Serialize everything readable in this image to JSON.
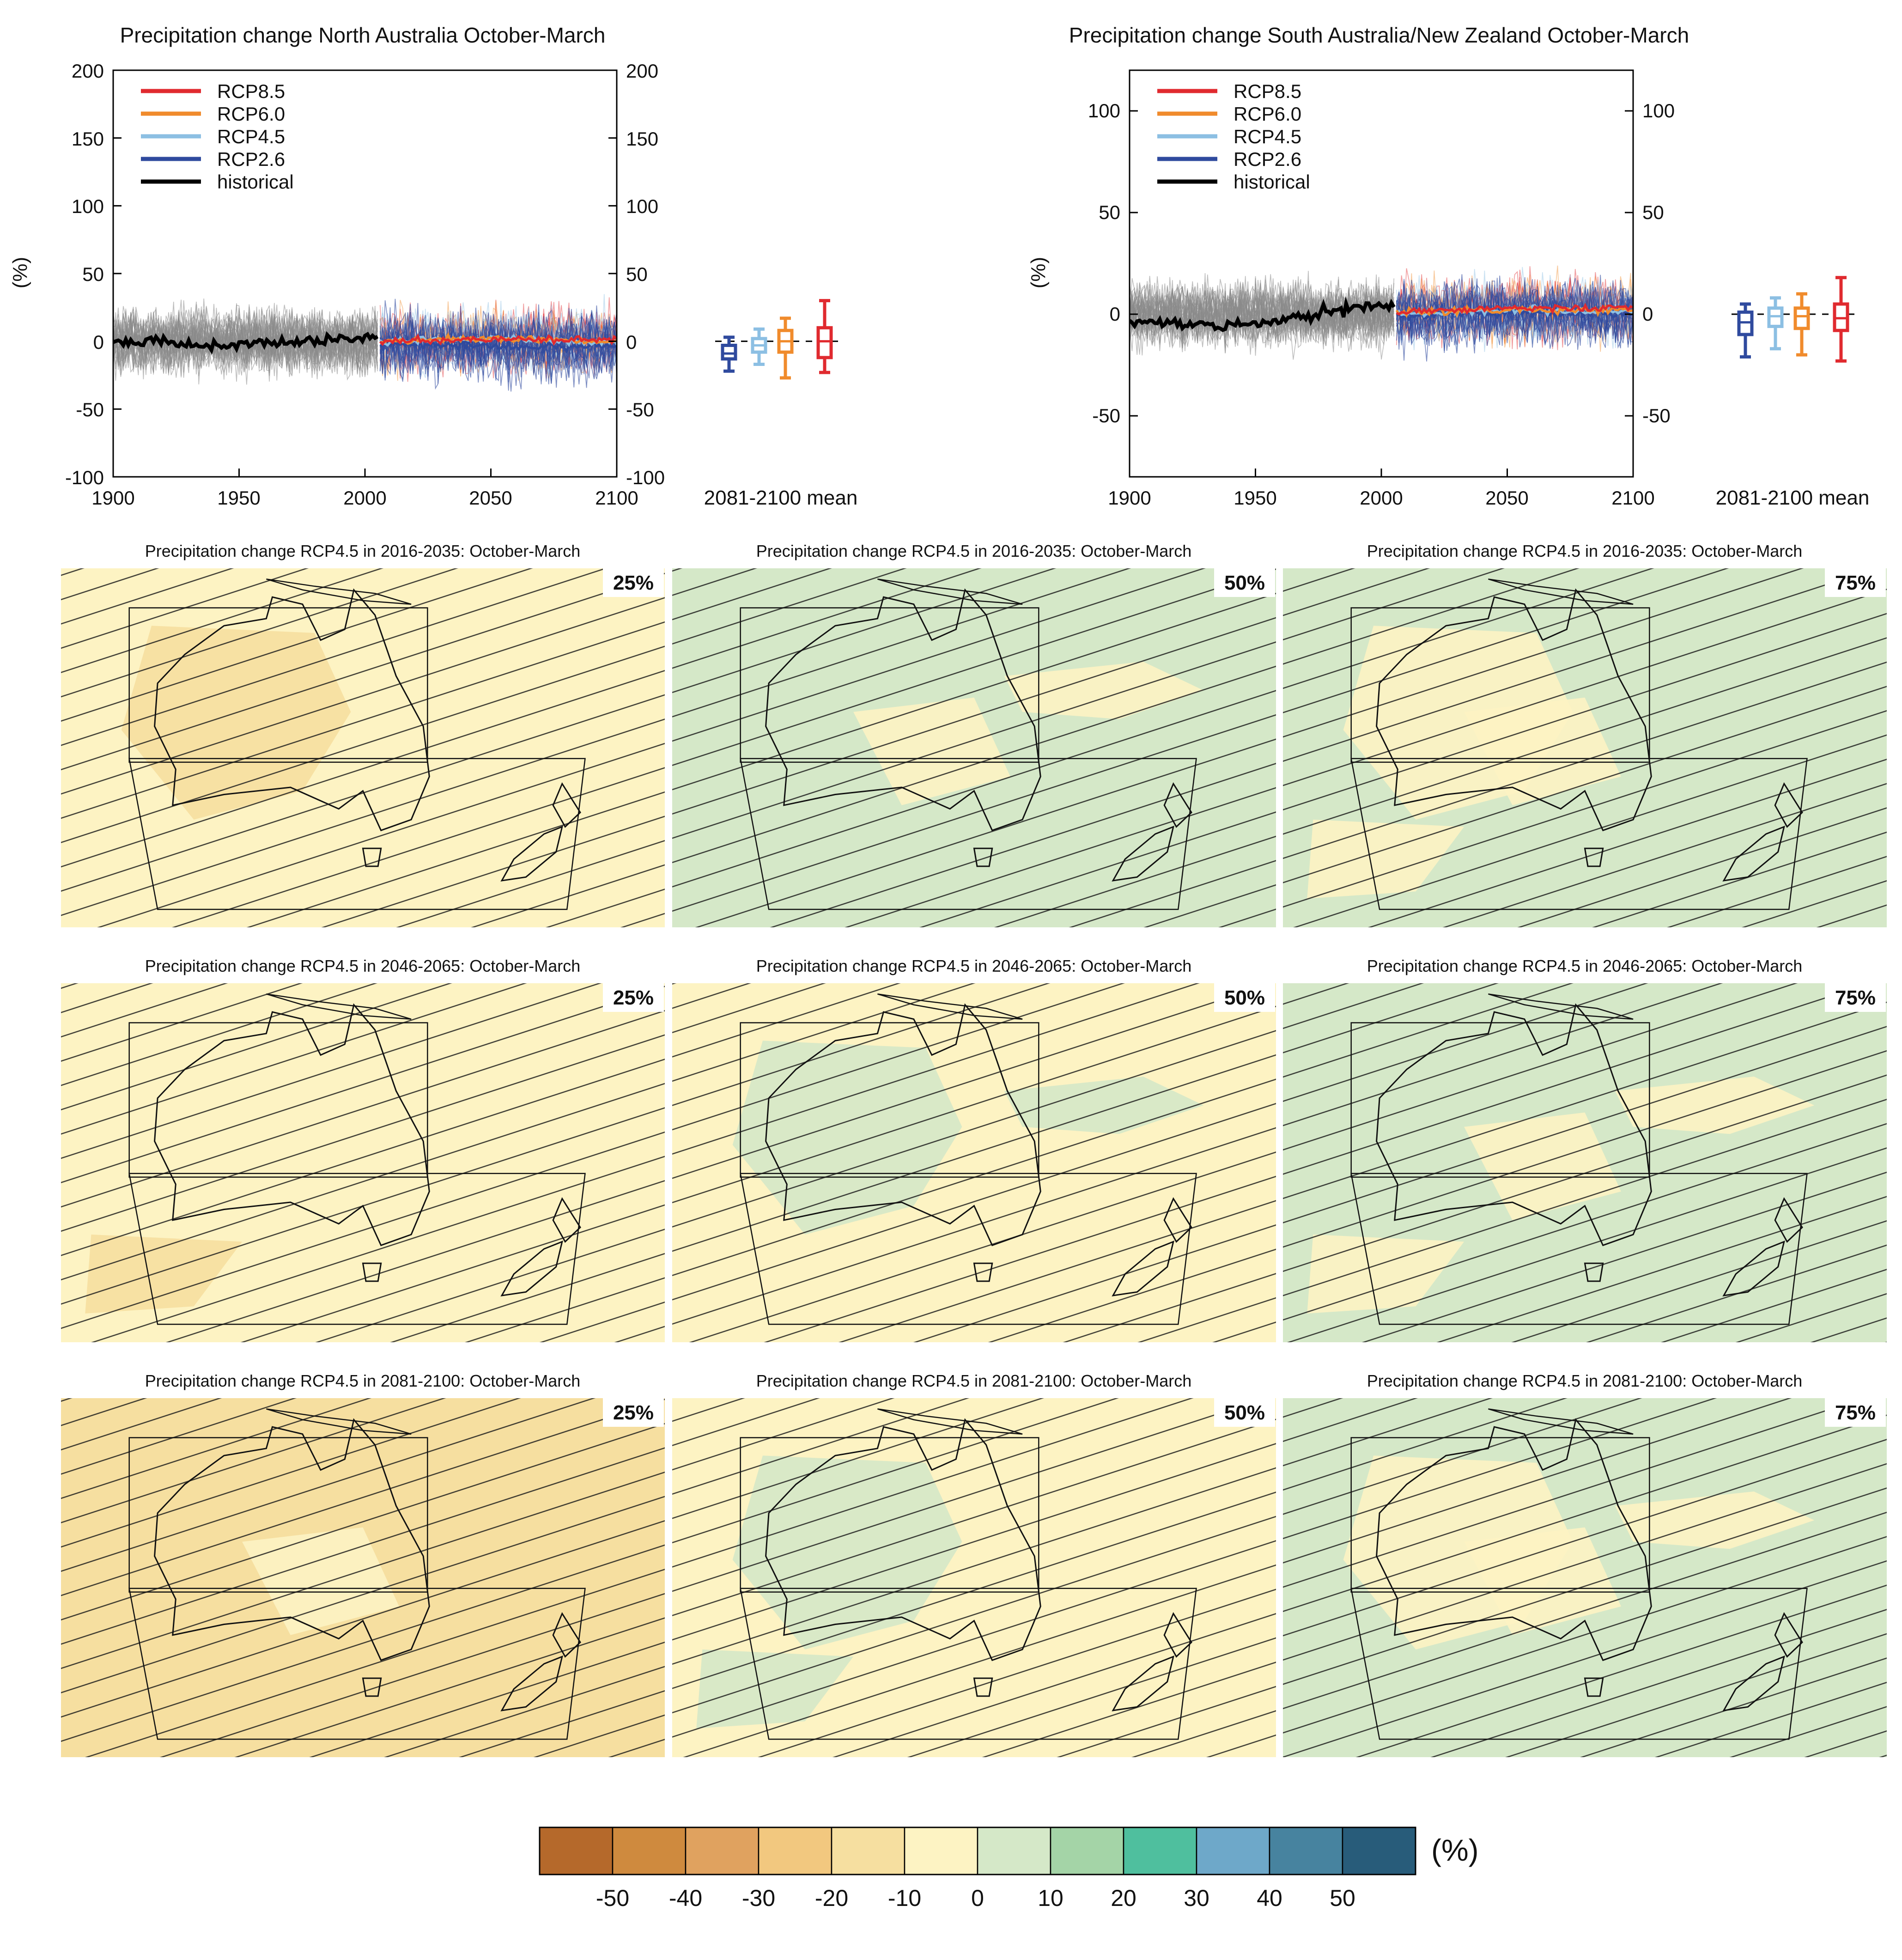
{
  "chart_data": [
    {
      "type": "line",
      "title": "Precipitation change North Australia October-March",
      "ylabel": "(%)",
      "xlim": [
        1900,
        2100
      ],
      "ylim": [
        -100,
        200
      ],
      "x_ticks": [
        "1900",
        "1950",
        "2000",
        "2050",
        "2100"
      ],
      "y_ticks": [
        "200",
        "150",
        "100",
        "50",
        "0",
        "-50",
        "-100"
      ],
      "legend": [
        "RCP8.5",
        "RCP6.0",
        "RCP4.5",
        "RCP2.6",
        "historical"
      ],
      "series": [
        {
          "name": "historical",
          "x": [
            1900,
            1920,
            1940,
            1960,
            1980,
            2005
          ],
          "values": [
            0,
            -1,
            -3,
            -1,
            1,
            2
          ]
        },
        {
          "name": "RCP2.6",
          "x": [
            2006,
            2050,
            2100
          ],
          "values": [
            -2,
            -4,
            -3
          ]
        },
        {
          "name": "RCP4.5",
          "x": [
            2006,
            2050,
            2100
          ],
          "values": [
            0,
            2,
            -1
          ]
        },
        {
          "name": "RCP6.0",
          "x": [
            2006,
            2050,
            2100
          ],
          "values": [
            0,
            2,
            0
          ]
        },
        {
          "name": "RCP8.5",
          "x": [
            2006,
            2050,
            2100
          ],
          "values": [
            0,
            1,
            2
          ]
        }
      ],
      "box_label": "2081-2100 mean",
      "boxes": [
        {
          "name": "RCP2.6",
          "min": -22,
          "q1": -13,
          "median": -9,
          "q3": -3,
          "max": 3
        },
        {
          "name": "RCP4.5",
          "min": -17,
          "q1": -8,
          "median": -3,
          "q3": 2,
          "max": 9
        },
        {
          "name": "RCP6.0",
          "min": -27,
          "q1": -8,
          "median": 0,
          "q3": 8,
          "max": 17
        },
        {
          "name": "RCP8.5",
          "min": -23,
          "q1": -12,
          "median": 0,
          "q3": 10,
          "max": 30
        }
      ]
    },
    {
      "type": "line",
      "title": "Precipitation change South Australia/New Zealand October-March",
      "ylabel": "(%)",
      "xlim": [
        1900,
        2100
      ],
      "ylim": [
        -80,
        120
      ],
      "x_ticks": [
        "1900",
        "1950",
        "2000",
        "2050",
        "2100"
      ],
      "y_ticks": [
        "100",
        "50",
        "0",
        "-50"
      ],
      "legend": [
        "RCP8.5",
        "RCP6.0",
        "RCP4.5",
        "RCP2.6",
        "historical"
      ],
      "series": [
        {
          "name": "historical",
          "x": [
            1900,
            1920,
            1940,
            1960,
            1980,
            2005
          ],
          "values": [
            -3,
            -5,
            -6,
            -3,
            2,
            4
          ]
        },
        {
          "name": "RCP2.6",
          "x": [
            2006,
            2050,
            2100
          ],
          "values": [
            -1,
            1,
            0
          ]
        },
        {
          "name": "RCP4.5",
          "x": [
            2006,
            2050,
            2100
          ],
          "values": [
            0,
            2,
            1
          ]
        },
        {
          "name": "RCP6.0",
          "x": [
            2006,
            2050,
            2100
          ],
          "values": [
            1,
            2,
            2
          ]
        },
        {
          "name": "RCP8.5",
          "x": [
            2006,
            2050,
            2100
          ],
          "values": [
            1,
            3,
            3
          ]
        }
      ],
      "box_label": "2081-2100 mean",
      "boxes": [
        {
          "name": "RCP2.6",
          "min": -21,
          "q1": -10,
          "median": -4,
          "q3": 1,
          "max": 5
        },
        {
          "name": "RCP4.5",
          "min": -17,
          "q1": -6,
          "median": -1,
          "q3": 3,
          "max": 8
        },
        {
          "name": "RCP6.0",
          "min": -20,
          "q1": -7,
          "median": -1,
          "q3": 3,
          "max": 10
        },
        {
          "name": "RCP8.5",
          "min": -23,
          "q1": -8,
          "median": -2,
          "q3": 5,
          "max": 18
        }
      ]
    },
    {
      "type": "heatmap",
      "colorbar": {
        "unit": "(%)",
        "ticks": [
          "-50",
          "-40",
          "-30",
          "-20",
          "-10",
          "0",
          "10",
          "20",
          "30",
          "40",
          "50"
        ],
        "colors": [
          "#b5692b",
          "#cf8a3e",
          "#e0a25f",
          "#f2c87f",
          "#f6dfa0",
          "#fdf3c3",
          "#d5e8c8",
          "#a4d4a7",
          "#4fbf9e",
          "#6ea8c9",
          "#47839f",
          "#285c7a"
        ]
      },
      "maps": [
        {
          "title": "Precipitation change RCP4.5 in 2016-2035: October-March",
          "percentile": "25%",
          "dominant": "-10 to 0",
          "blobs": [
            "-20 to -10"
          ]
        },
        {
          "title": "Precipitation change RCP4.5 in 2016-2035: October-March",
          "percentile": "50%",
          "dominant": "0 to 10",
          "blobs": [
            "-10 to 0"
          ]
        },
        {
          "title": "Precipitation change RCP4.5 in 2016-2035: October-March",
          "percentile": "75%",
          "dominant": "0 to 10",
          "blobs": [
            "-10 to 0"
          ]
        },
        {
          "title": "Precipitation change RCP4.5 in 2046-2065: October-March",
          "percentile": "25%",
          "dominant": "-10 to 0",
          "blobs": [
            "-20 to -10"
          ]
        },
        {
          "title": "Precipitation change RCP4.5 in 2046-2065: October-March",
          "percentile": "50%",
          "dominant": "-10 to 0",
          "blobs": [
            "0 to 10"
          ]
        },
        {
          "title": "Precipitation change RCP4.5 in 2046-2065: October-March",
          "percentile": "75%",
          "dominant": "0 to 10",
          "blobs": [
            "-10 to 0"
          ]
        },
        {
          "title": "Precipitation change RCP4.5 in 2081-2100: October-March",
          "percentile": "25%",
          "dominant": "-20 to -10",
          "blobs": [
            "-10 to 0"
          ]
        },
        {
          "title": "Precipitation change RCP4.5 in 2081-2100: October-March",
          "percentile": "50%",
          "dominant": "-10 to 0",
          "blobs": [
            "0 to 10"
          ]
        },
        {
          "title": "Precipitation change RCP4.5 in 2081-2100: October-March",
          "percentile": "75%",
          "dominant": "0 to 10",
          "blobs": [
            "-10 to 0"
          ]
        }
      ]
    }
  ]
}
